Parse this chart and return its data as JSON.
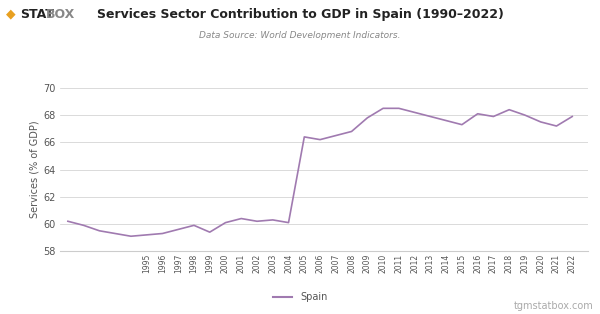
{
  "title": "Services Sector Contribution to GDP in Spain (1990–2022)",
  "subtitle": "Data Source: World Development Indicators.",
  "ylabel": "Services (% of GDP)",
  "watermark": "tgmstatbox.com",
  "legend_label": "Spain",
  "line_color": "#a07ab0",
  "background_color": "#ffffff",
  "plot_bg_color": "#ffffff",
  "grid_color": "#cccccc",
  "text_color": "#555555",
  "title_color": "#222222",
  "subtitle_color": "#888888",
  "logo_diamond_color": "#e8a020",
  "logo_stat_color": "#222222",
  "logo_box_color": "#888888",
  "watermark_color": "#aaaaaa",
  "ylim": [
    58,
    70
  ],
  "yticks": [
    58,
    60,
    62,
    64,
    66,
    68,
    70
  ],
  "years": [
    1990,
    1991,
    1992,
    1993,
    1994,
    1995,
    1996,
    1997,
    1998,
    1999,
    2000,
    2001,
    2002,
    2003,
    2004,
    2005,
    2006,
    2007,
    2008,
    2009,
    2010,
    2011,
    2012,
    2013,
    2014,
    2015,
    2016,
    2017,
    2018,
    2019,
    2020,
    2021,
    2022
  ],
  "values": [
    60.2,
    59.9,
    59.5,
    59.3,
    59.1,
    59.2,
    59.3,
    59.6,
    59.9,
    59.4,
    60.1,
    60.4,
    60.2,
    60.3,
    60.1,
    66.4,
    66.2,
    66.5,
    66.8,
    67.8,
    68.5,
    68.5,
    68.2,
    67.9,
    67.6,
    67.3,
    68.1,
    67.9,
    68.4,
    68.0,
    67.5,
    67.2,
    67.9
  ],
  "xtick_start": 1995,
  "xtick_end": 2022,
  "xlim_left": 1989.5,
  "xlim_right": 2023.0
}
